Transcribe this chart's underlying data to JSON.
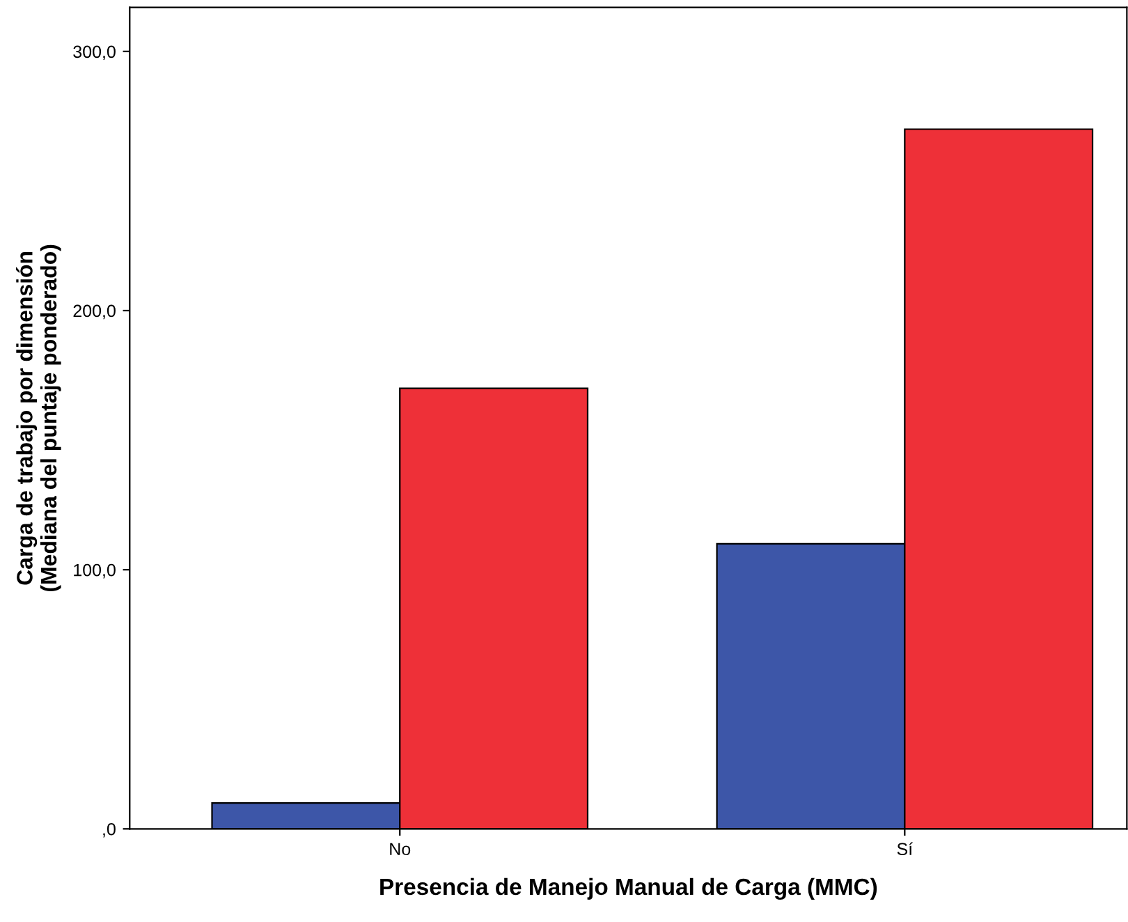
{
  "chart_data": {
    "type": "bar",
    "xlabel": "Presencia de Manejo Manual de Carga (MMC)",
    "ylabel": "Carga de trabajo por dimensión\n(Mediana del puntaje ponderado)",
    "categories": [
      "No",
      "Sí"
    ],
    "series": [
      {
        "color": "#3d56a8",
        "values": [
          10,
          110
        ]
      },
      {
        "color": "#ee3038",
        "values": [
          170,
          270
        ]
      }
    ],
    "ylim": [
      0,
      317
    ],
    "yticks": [
      {
        "value": 0,
        "label": ",0"
      },
      {
        "value": 100,
        "label": "100,0"
      },
      {
        "value": 200,
        "label": "200,0"
      },
      {
        "value": 300,
        "label": "300,0"
      }
    ],
    "grid": false,
    "legend": false
  }
}
